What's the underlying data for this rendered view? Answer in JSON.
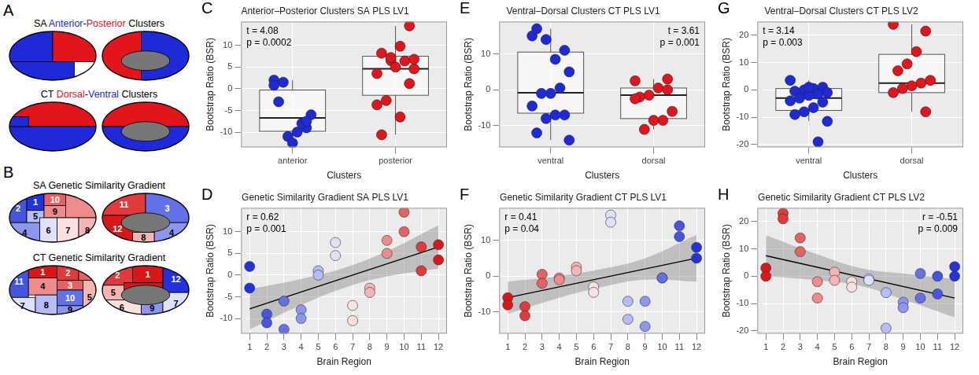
{
  "brain_maps": [
    {
      "panel": "A",
      "maps": [
        {
          "title_parts": [
            {
              "text": "SA "
            },
            {
              "text": "Anterior",
              "color": "#1e2ad8"
            },
            {
              "text": "-"
            },
            {
              "text": "Posterior",
              "color": "#e3151c"
            },
            {
              "text": " Clusters"
            }
          ]
        },
        {
          "title_parts": [
            {
              "text": "CT "
            },
            {
              "text": "Dorsal",
              "color": "#e3151c"
            },
            {
              "text": "-"
            },
            {
              "text": "Ventral",
              "color": "#1e2ad8"
            },
            {
              "text": " Clusters"
            }
          ]
        }
      ]
    },
    {
      "panel": "B",
      "maps": [
        {
          "title": "SA Genetic Similarity Gradient",
          "region_colors": [
            "#2233dd",
            "#4455e0",
            "#6272e6",
            "#8b97ee",
            "#b4bdf5",
            "#dde1fb",
            "#fbe0e0",
            "#f5b5b5",
            "#ee8b8b",
            "#e66262",
            "#e03a3a",
            "#d81818"
          ],
          "lateral_labels": [
            "2",
            "1",
            "10",
            "5",
            "9",
            "6",
            "4",
            "7",
            "8"
          ],
          "medial_labels": [
            "11",
            "3",
            "12",
            "4",
            "8"
          ]
        },
        {
          "title": "CT Genetic Similarity Gradient",
          "region_colors": [
            "#d81818",
            "#e03a3a",
            "#e66262",
            "#ee8b8b",
            "#f5b5b5",
            "#fbe0e0",
            "#dde1fb",
            "#b4bdf5",
            "#8b97ee",
            "#6272e6",
            "#4455e0",
            "#2233dd"
          ],
          "lateral_labels": [
            "11",
            "1",
            "2",
            "3",
            "4",
            "10",
            "5",
            "7",
            "8",
            "9"
          ],
          "medial_labels": [
            "2",
            "1",
            "12",
            "5",
            "6",
            "9",
            "7"
          ]
        }
      ]
    }
  ],
  "chart_data": [
    {
      "panel": "C",
      "type": "boxplot",
      "title": "Anterior–Posterior Clusters SA PLS LV1",
      "x_label": "Clusters",
      "y_label": "Bootstrap Ratio (BSR)",
      "categories": [
        "anterior",
        "posterior"
      ],
      "colors": [
        "#1e2ad8",
        "#e3151c"
      ],
      "values": [
        [
          2.0,
          -9.0,
          -10.0,
          -11.0,
          -3.0,
          -6.0,
          -8.0,
          -12.5,
          1.5,
          0.8,
          -7.5
        ],
        [
          3.5,
          14.5,
          9.8,
          6.5,
          8.2,
          4.6,
          6.4,
          5.0,
          -2.7,
          -3.7,
          1.2,
          -6.5,
          7.2,
          -10.6,
          6.8
        ]
      ],
      "box": [
        {
          "low": -12.5,
          "q1": -9.8,
          "median": -6.7,
          "q3": -0.3,
          "high": 2.0
        },
        {
          "low": -10.6,
          "q1": -1.5,
          "median": 4.6,
          "q3": 7.5,
          "high": 14.5
        }
      ],
      "ylim": [
        -13.5,
        15.5
      ],
      "yticks": [
        -10,
        -5,
        0,
        5,
        10
      ],
      "annotations": [
        "t = 4.08",
        "p = 0.0002"
      ],
      "grid": true
    },
    {
      "panel": "D",
      "type": "scatter",
      "title": "Genetic Similarity Gradient SA PLS LV1",
      "x_label": "Brain Region",
      "y_label": "Bootstrap Ratio (BSR)",
      "x": [
        1,
        1,
        2,
        2,
        3,
        3,
        4,
        4,
        5,
        5,
        6,
        6,
        7,
        7,
        8,
        8,
        9,
        9,
        10,
        10,
        11,
        11,
        12,
        12
      ],
      "values": [
        2,
        -3,
        -9,
        -11,
        -6,
        -12.5,
        -8,
        -10,
        1,
        0,
        7.5,
        4.5,
        -7,
        -10.5,
        -3,
        -4,
        8,
        5,
        14.5,
        10,
        6.5,
        1,
        7,
        3.5
      ],
      "colors": [
        "#2233dd",
        "#2233dd",
        "#4455e0",
        "#4455e0",
        "#6272e6",
        "#6272e6",
        "#8b97ee",
        "#8b97ee",
        "#b4bdf5",
        "#b4bdf5",
        "#dde1fb",
        "#dde1fb",
        "#fbe0e0",
        "#fbe0e0",
        "#f5b5b5",
        "#f5b5b5",
        "#ee8b8b",
        "#ee8b8b",
        "#e66262",
        "#e66262",
        "#e03a3a",
        "#e03a3a",
        "#d81818",
        "#d81818"
      ],
      "fit": {
        "x": [
          1,
          12
        ],
        "y": [
          -7.8,
          6.5
        ]
      },
      "ci": {
        "x": [
          1,
          4,
          6.5,
          9,
          12
        ],
        "lower": [
          -12.5,
          -6.9,
          -2.95,
          -0.3,
          1.5
        ],
        "upper": [
          -3.2,
          -0.9,
          1.65,
          5.5,
          11.5
        ]
      },
      "xlim": [
        0.5,
        12.5
      ],
      "xticks": [
        1,
        2,
        3,
        4,
        5,
        6,
        7,
        8,
        9,
        10,
        11,
        12
      ],
      "ylim": [
        -13.5,
        15.5
      ],
      "yticks": [
        -10,
        -5,
        0,
        5,
        10
      ],
      "annotations": [
        "r = 0.62",
        "p = 0.001"
      ],
      "grid": true
    },
    {
      "panel": "E",
      "type": "boxplot",
      "title": "Ventral–Dorsal Clusters CT PLS LV1",
      "x_label": "Clusters",
      "y_label": "Bootstrap Ratio (BSR)",
      "categories": [
        "ventral",
        "dorsal"
      ],
      "colors": [
        "#1e2ad8",
        "#e3151c"
      ],
      "values": [
        [
          15,
          11,
          8.5,
          14,
          17,
          5,
          0.5,
          -1,
          -1,
          -4.5,
          -7,
          -7,
          -8,
          -12,
          -14
        ],
        [
          2.5,
          3,
          0.5,
          -1.5,
          -2,
          -6,
          -8.5,
          -8.5,
          -11,
          -2.5,
          0
        ]
      ],
      "box": [
        {
          "low": -14,
          "q1": -6.5,
          "median": -0.8,
          "q3": 10.5,
          "high": 17
        },
        {
          "low": -11,
          "q1": -8,
          "median": -1.5,
          "q3": 0.5,
          "high": 3
        }
      ],
      "ylim": [
        -16,
        19
      ],
      "yticks": [
        -10,
        0,
        10
      ],
      "annotations": [
        "t = 3.61",
        "p = 0.001"
      ],
      "grid": true
    },
    {
      "panel": "F",
      "type": "scatter",
      "title": "Genetic Similarity Gradient CT PLS LV1",
      "x_label": "Brain Region",
      "y_label": "Bootstrap Ratio (BSR)",
      "x": [
        1,
        1,
        2,
        2,
        3,
        3,
        4,
        4,
        5,
        5,
        6,
        6,
        7,
        7,
        8,
        8,
        9,
        9,
        10,
        10,
        11,
        11,
        12,
        12
      ],
      "values": [
        -6,
        -8,
        -8.5,
        -11,
        0.5,
        -2,
        -0.5,
        -1,
        2.5,
        1.5,
        -3,
        -4.5,
        17,
        15,
        -7,
        -12,
        -7,
        -14,
        -0.5,
        -0.5,
        14,
        11,
        8,
        5
      ],
      "colors": [
        "#d81818",
        "#d81818",
        "#e03a3a",
        "#e03a3a",
        "#e66262",
        "#e66262",
        "#ee8b8b",
        "#ee8b8b",
        "#f5b5b5",
        "#f5b5b5",
        "#fbe0e0",
        "#fbe0e0",
        "#dde1fb",
        "#dde1fb",
        "#b4bdf5",
        "#b4bdf5",
        "#8b97ee",
        "#8b97ee",
        "#6272e6",
        "#6272e6",
        "#4455e0",
        "#4455e0",
        "#2233dd",
        "#2233dd"
      ],
      "fit": {
        "x": [
          1,
          12
        ],
        "y": [
          -6,
          5
        ]
      },
      "ci": {
        "x": [
          1,
          4,
          6.5,
          9,
          12
        ],
        "lower": [
          -10.5,
          -6,
          -3,
          -1,
          -1.5
        ],
        "upper": [
          -1.5,
          0,
          2,
          5,
          11.5
        ]
      },
      "xlim": [
        0.5,
        12.5
      ],
      "xticks": [
        1,
        2,
        3,
        4,
        5,
        6,
        7,
        8,
        9,
        10,
        11,
        12
      ],
      "ylim": [
        -16,
        19
      ],
      "yticks": [
        -10,
        0,
        10
      ],
      "annotations": [
        "r = 0.41",
        "p = 0.04"
      ],
      "grid": true
    },
    {
      "panel": "G",
      "type": "boxplot",
      "title": "Ventral–Dorsal Clusters CT PLS LV2",
      "x_label": "Clusters",
      "y_label": "Bootstrap Ratio (BSR)",
      "categories": [
        "ventral",
        "dorsal"
      ],
      "colors": [
        "#1e2ad8",
        "#e3151c"
      ],
      "values": [
        [
          3.5,
          1,
          0.5,
          0,
          -0.5,
          -1,
          -1.5,
          -2,
          -3,
          -4,
          -4.5,
          -6.5,
          -8,
          -9,
          -11.5,
          -19,
          1
        ],
        [
          24,
          21.5,
          14,
          9.5,
          7,
          3.5,
          2.5,
          1.5,
          0.5,
          -1,
          -8
        ]
      ],
      "box": [
        {
          "low": -11.5,
          "q1": -7.5,
          "median": -3,
          "q3": 0.5,
          "high": 3.5
        },
        {
          "low": -8,
          "q1": -1,
          "median": 2.5,
          "q3": 13,
          "high": 24
        }
      ],
      "ylim": [
        -21,
        25
      ],
      "yticks": [
        -20,
        -10,
        0,
        10,
        20
      ],
      "annotations": [
        "t = 3.14",
        "p = 0.003"
      ],
      "grid": true
    },
    {
      "panel": "H",
      "type": "scatter",
      "title": "Genetic Similarity Gradient CT PLS LV2",
      "x_label": "Brain Region",
      "y_label": "Bootstrap Ratio (BSR)",
      "x": [
        1,
        1,
        2,
        2,
        3,
        3,
        4,
        4,
        5,
        5,
        6,
        6,
        7,
        7,
        8,
        8,
        9,
        9,
        10,
        10,
        11,
        11,
        12,
        12
      ],
      "values": [
        3,
        0,
        23,
        21,
        14,
        9,
        -2,
        -8,
        1.5,
        -1.5,
        -2,
        -4,
        -1,
        -1.5,
        -6,
        -19,
        -9.5,
        -11.5,
        1,
        -8,
        0,
        -6.5,
        3.5,
        0
      ],
      "colors": [
        "#d81818",
        "#d81818",
        "#e03a3a",
        "#e03a3a",
        "#e66262",
        "#e66262",
        "#ee8b8b",
        "#ee8b8b",
        "#f5b5b5",
        "#f5b5b5",
        "#fbe0e0",
        "#fbe0e0",
        "#dde1fb",
        "#dde1fb",
        "#b4bdf5",
        "#b4bdf5",
        "#8b97ee",
        "#8b97ee",
        "#6272e6",
        "#6272e6",
        "#4455e0",
        "#4455e0",
        "#2233dd",
        "#2233dd"
      ],
      "fit": {
        "x": [
          1,
          12
        ],
        "y": [
          7.5,
          -8
        ]
      },
      "ci": {
        "x": [
          1,
          4,
          6.5,
          9,
          12
        ],
        "lower": [
          0,
          -1.5,
          -3.5,
          -8.5,
          -15
        ],
        "upper": [
          15,
          8,
          3,
          1,
          -1
        ]
      },
      "xlim": [
        0.5,
        12.5
      ],
      "xticks": [
        1,
        2,
        3,
        4,
        5,
        6,
        7,
        8,
        9,
        10,
        11,
        12
      ],
      "ylim": [
        -21,
        25
      ],
      "yticks": [
        -20,
        -10,
        0,
        10,
        20
      ],
      "annotations": [
        "r = -0.51",
        "p = 0.009"
      ],
      "grid": true
    }
  ]
}
